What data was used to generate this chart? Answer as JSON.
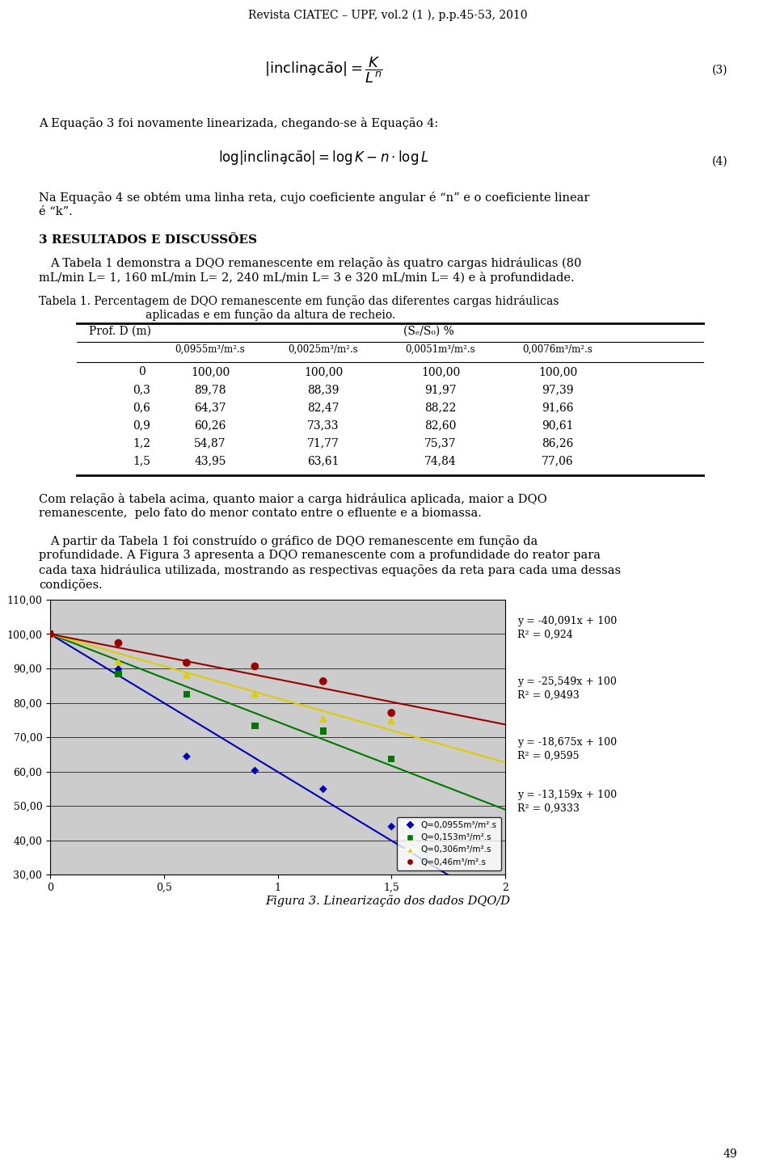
{
  "page_title": "Revista CIATEC – UPF, vol.2 (1 ), p.p.45-53, 2010",
  "eq3_label": "(3)",
  "eq4_intro": "A Equação 3 foi novamente linearizada, chegando-se à Equação 4:",
  "eq4_label": "(4)",
  "para1_line1": "Na Equação 4 se obtém uma linha reta, cujo coeficiente angular é “n” e o coeficiente linear",
  "para1_line2": "é “k”.",
  "section_title": "3 RESULTADOS E DISCUSSÕES",
  "section_para_line1": "A Tabela 1 demonstra a DQO remanescente em relação às quatro cargas hidráulicas (80",
  "section_para_line2": "mL/min L= 1, 160 mL/min L= 2, 240 mL/min L= 3 e 320 mL/min L= 4) e à profundidade.",
  "table_title_line1": "Tabela 1. Percentagem de DQO remanescente em função das diferentes cargas hidráulicas",
  "table_title_line2": "aplicadas e em função da altura de recheio.",
  "table_col1_header": "Prof. D (m)",
  "table_col2_header": "(Sₑ/S₀) %",
  "table_sub_headers": [
    "0,0955m³/m².s",
    "0,0025m³/m².s",
    "0,0051m³/m².s",
    "0,0076m³/m².s"
  ],
  "table_rows": [
    [
      "0",
      "100,00",
      "100,00",
      "100,00",
      "100,00"
    ],
    [
      "0,3",
      "89,78",
      "88,39",
      "91,97",
      "97,39"
    ],
    [
      "0,6",
      "64,37",
      "82,47",
      "88,22",
      "91,66"
    ],
    [
      "0,9",
      "60,26",
      "73,33",
      "82,60",
      "90,61"
    ],
    [
      "1,2",
      "54,87",
      "71,77",
      "75,37",
      "86,26"
    ],
    [
      "1,5",
      "43,95",
      "63,61",
      "74,84",
      "77,06"
    ]
  ],
  "para2_line1": "Com relação à tabela acima, quanto maior a carga hidráulica aplicada, maior a DQO",
  "para2_line2": "remanescente,  pelo fato do menor contato entre o efluente e a biomassa.",
  "para3_line1": "A partir da Tabela 1 foi construído o gráfico de DQO remanescente em função da",
  "para3_line2": "profundidade. A Figura 3 apresenta a DQO remanescente com a profundidade do reator para",
  "para3_line3": "cada taxa hidráulica utilizada, mostrando as respectivas equações da reta para cada uma dessas",
  "para3_line4": "condições.",
  "chart": {
    "ylim": [
      30,
      110
    ],
    "xlim": [
      0,
      2
    ],
    "yticks": [
      30.0,
      40.0,
      50.0,
      60.0,
      70.0,
      80.0,
      90.0,
      100.0,
      110.0
    ],
    "xticks": [
      0,
      0.5,
      1,
      1.5,
      2
    ],
    "xtick_labels": [
      "0",
      "0,5",
      "1",
      "1,5",
      "2"
    ],
    "series": [
      {
        "name": "Q=0,0955m³/m².s",
        "color": "#0000BB",
        "marker": "D",
        "markersize": 5,
        "x": [
          0,
          0.3,
          0.6,
          0.9,
          1.2,
          1.5
        ],
        "y": [
          100.0,
          89.78,
          64.37,
          60.26,
          54.87,
          43.95
        ],
        "slope": -40.091,
        "intercept": 100
      },
      {
        "name": "Q=0,153m³/m².s",
        "color": "#007700",
        "marker": "s",
        "markersize": 6,
        "x": [
          0,
          0.3,
          0.6,
          0.9,
          1.2,
          1.5
        ],
        "y": [
          100.0,
          88.39,
          82.47,
          73.33,
          71.77,
          63.61
        ],
        "slope": -25.549,
        "intercept": 100
      },
      {
        "name": "Q=0,306m³/m².s",
        "color": "#DDCC00",
        "marker": "^",
        "markersize": 7,
        "x": [
          0,
          0.3,
          0.6,
          0.9,
          1.2,
          1.5
        ],
        "y": [
          100.0,
          91.97,
          88.22,
          82.6,
          75.37,
          74.84
        ],
        "slope": -18.675,
        "intercept": 100
      },
      {
        "name": "Q=0,46m³/m².s",
        "color": "#990000",
        "marker": "o",
        "markersize": 7,
        "x": [
          0,
          0.3,
          0.6,
          0.9,
          1.2,
          1.5
        ],
        "y": [
          100.0,
          97.39,
          91.66,
          90.61,
          86.26,
          77.06
        ],
        "slope": -13.159,
        "intercept": 100
      }
    ],
    "eq_lines": [
      [
        "y = -40,091x + 100",
        "R² = 0,924"
      ],
      [
        "y = -25,549x + 100",
        "R² = 0,9493"
      ],
      [
        "y = -18,675x + 100",
        "R² = 0,9595"
      ],
      [
        "y = -13,159x + 100",
        "R² = 0,9333"
      ]
    ],
    "fig_caption": "Figura 3. Linearização dos dados DQO/D"
  },
  "page_number": "49"
}
